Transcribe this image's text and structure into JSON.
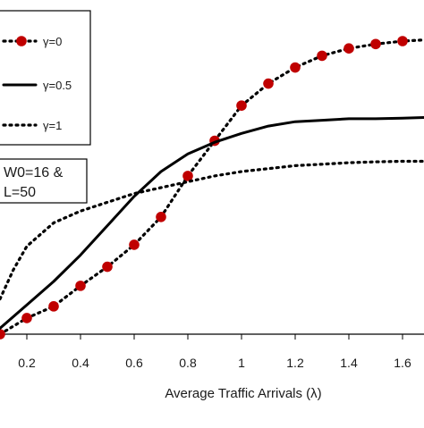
{
  "chart_data": {
    "type": "line",
    "title": "",
    "xlabel": "Average Traffic Arrivals (λ)",
    "ylabel": "",
    "xlim": [
      0.1,
      1.7
    ],
    "ylim": [
      0,
      1
    ],
    "grid": false,
    "legend_position": "top-left",
    "x_ticks": [
      "0.2",
      "0.4",
      "0.6",
      "0.8",
      "1",
      "1.2",
      "1.4",
      "1.6"
    ],
    "annotation": [
      "W0=16 &",
      "L=50"
    ],
    "series": [
      {
        "name": "γ=0",
        "style": "dotted-with-markers",
        "color": "#000000",
        "marker_color": "#c00000",
        "points": [
          [
            0.1,
            0.0
          ],
          [
            0.2,
            0.055
          ],
          [
            0.3,
            0.095
          ],
          [
            0.4,
            0.165
          ],
          [
            0.5,
            0.23
          ],
          [
            0.6,
            0.305
          ],
          [
            0.7,
            0.4
          ],
          [
            0.8,
            0.54
          ],
          [
            0.9,
            0.66
          ],
          [
            1.0,
            0.78
          ],
          [
            1.1,
            0.855
          ],
          [
            1.2,
            0.91
          ],
          [
            1.3,
            0.95
          ],
          [
            1.4,
            0.975
          ],
          [
            1.5,
            0.99
          ],
          [
            1.6,
            1.0
          ],
          [
            1.7,
            1.005
          ]
        ]
      },
      {
        "name": "γ=0.5",
        "style": "solid",
        "color": "#000000",
        "points": [
          [
            0.1,
            0.02
          ],
          [
            0.2,
            0.1
          ],
          [
            0.3,
            0.18
          ],
          [
            0.4,
            0.27
          ],
          [
            0.5,
            0.37
          ],
          [
            0.6,
            0.47
          ],
          [
            0.7,
            0.555
          ],
          [
            0.8,
            0.615
          ],
          [
            0.9,
            0.655
          ],
          [
            1.0,
            0.685
          ],
          [
            1.1,
            0.71
          ],
          [
            1.2,
            0.725
          ],
          [
            1.3,
            0.73
          ],
          [
            1.4,
            0.735
          ],
          [
            1.5,
            0.735
          ],
          [
            1.6,
            0.737
          ],
          [
            1.7,
            0.74
          ]
        ]
      },
      {
        "name": "γ=1",
        "style": "dotted",
        "color": "#000000",
        "points": [
          [
            0.1,
            0.12
          ],
          [
            0.15,
            0.22
          ],
          [
            0.2,
            0.3
          ],
          [
            0.3,
            0.38
          ],
          [
            0.4,
            0.42
          ],
          [
            0.5,
            0.45
          ],
          [
            0.6,
            0.48
          ],
          [
            0.7,
            0.5
          ],
          [
            0.8,
            0.52
          ],
          [
            0.9,
            0.54
          ],
          [
            1.0,
            0.555
          ],
          [
            1.1,
            0.565
          ],
          [
            1.2,
            0.575
          ],
          [
            1.3,
            0.58
          ],
          [
            1.4,
            0.585
          ],
          [
            1.5,
            0.588
          ],
          [
            1.6,
            0.59
          ],
          [
            1.7,
            0.59
          ]
        ]
      }
    ]
  }
}
